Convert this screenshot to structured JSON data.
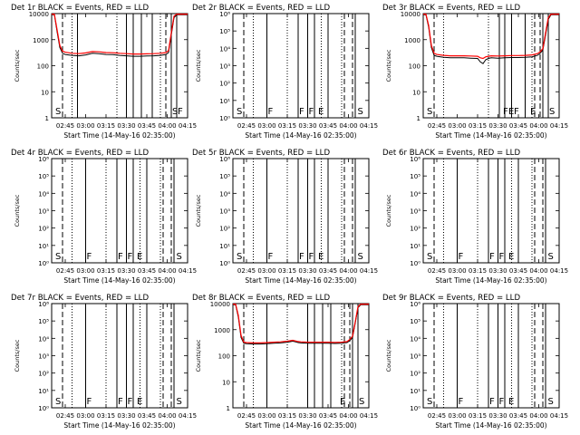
{
  "figure": {
    "xlabel": "Start Time (14-May-16 02:35:00)",
    "ylabel": "Counts/sec",
    "x_tick_labels": [
      "02:45",
      "03:00",
      "03:15",
      "03:30",
      "03:45",
      "04:00",
      "04:15"
    ],
    "colors": {
      "events": "#000000",
      "lld": "#ff0000"
    }
  },
  "chart_data": [
    {
      "type": "line",
      "title": "Det 1r BLACK = Events, RED = LLD",
      "xlabel": "Start Time (14-May-16 02:35:00)",
      "ylabel": "Counts/sec",
      "scale": "log",
      "ylim": [
        1,
        10000
      ],
      "ytick_labels": [
        "1",
        "10",
        "100",
        "1000",
        "10000"
      ],
      "x_ticks_minutes": [
        10,
        25,
        40,
        55,
        70,
        85,
        100
      ],
      "markers": [
        {
          "t": 2,
          "label": "S"
        },
        {
          "t": 88,
          "label": "S"
        },
        {
          "t": 92,
          "label": "F"
        }
      ],
      "solid_lines": [
        19,
        55,
        60,
        66,
        74,
        88,
        92
      ],
      "dashed_lines": [
        8,
        84
      ],
      "dotted_lines": [
        15,
        48,
        80
      ],
      "series": [
        {
          "name": "Events",
          "color": "#000000",
          "x": [
            0,
            2,
            4,
            6,
            8,
            10,
            15,
            20,
            25,
            30,
            35,
            40,
            45,
            50,
            55,
            60,
            65,
            70,
            75,
            80,
            84,
            86,
            88,
            90,
            92,
            94,
            96,
            98,
            100
          ],
          "y": [
            9000,
            9000,
            2000,
            500,
            300,
            270,
            250,
            240,
            260,
            300,
            290,
            270,
            265,
            250,
            240,
            230,
            230,
            235,
            240,
            250,
            270,
            320,
            1500,
            7000,
            9000,
            9000,
            9000,
            9000,
            9000
          ]
        },
        {
          "name": "LLD",
          "color": "#ff0000",
          "x": [
            0,
            2,
            4,
            6,
            8,
            10,
            15,
            20,
            25,
            30,
            35,
            40,
            45,
            50,
            55,
            60,
            65,
            70,
            75,
            80,
            84,
            86,
            88,
            90,
            92,
            94,
            96,
            98,
            100
          ],
          "y": [
            9500,
            9500,
            2400,
            600,
            360,
            330,
            300,
            290,
            310,
            350,
            340,
            320,
            315,
            300,
            290,
            280,
            280,
            285,
            290,
            300,
            320,
            380,
            1800,
            8000,
            9500,
            9500,
            9500,
            9500,
            9500
          ]
        }
      ]
    },
    {
      "type": "line",
      "title": "Det 2r BLACK = Events, RED = LLD",
      "xlabel": "Start Time (14-May-16 02:35:00)",
      "ylabel": "Counts/sec",
      "scale": "log",
      "ylim": [
        1,
        1000000
      ],
      "ytick_labels": [
        "10⁰",
        "10¹",
        "10²",
        "10³",
        "10⁴",
        "10⁵",
        "10⁶"
      ],
      "x_ticks_minutes": [
        10,
        25,
        40,
        55,
        70,
        85,
        100
      ],
      "markers": [
        {
          "t": 2,
          "label": "S"
        },
        {
          "t": 25,
          "label": "F"
        },
        {
          "t": 48,
          "label": "F"
        },
        {
          "t": 55,
          "label": "F"
        },
        {
          "t": 62,
          "label": "E"
        },
        {
          "t": 91,
          "label": "S"
        }
      ],
      "solid_lines": [
        25,
        48,
        55,
        60,
        70,
        90
      ],
      "dashed_lines": [
        8,
        82,
        88
      ],
      "dotted_lines": [
        15,
        40,
        65,
        80
      ],
      "series": []
    },
    {
      "type": "line",
      "title": "Det 3r BLACK = Events, RED = LLD",
      "xlabel": "Start Time (14-May-16 02:35:00)",
      "ylabel": "Counts/sec",
      "scale": "log",
      "ylim": [
        1,
        10000
      ],
      "ytick_labels": [
        "1",
        "10",
        "100",
        "1000",
        "10000"
      ],
      "x_ticks_minutes": [
        10,
        25,
        40,
        55,
        70,
        85,
        100
      ],
      "markers": [
        {
          "t": 2,
          "label": "S"
        },
        {
          "t": 58,
          "label": "F"
        },
        {
          "t": 62,
          "label": "E"
        },
        {
          "t": 66,
          "label": "F"
        },
        {
          "t": 78,
          "label": "E"
        },
        {
          "t": 92,
          "label": "S"
        }
      ],
      "solid_lines": [
        56,
        60,
        65,
        75,
        88,
        92
      ],
      "dashed_lines": [
        8,
        82,
        86
      ],
      "dotted_lines": [
        15,
        48,
        80
      ],
      "series": [
        {
          "name": "Events",
          "color": "#000000",
          "x": [
            0,
            2,
            4,
            6,
            8,
            10,
            15,
            20,
            25,
            30,
            35,
            40,
            42,
            44,
            46,
            48,
            50,
            55,
            60,
            65,
            70,
            75,
            80,
            84,
            86,
            88,
            90,
            92,
            94,
            96,
            98,
            100
          ],
          "y": [
            9000,
            9000,
            3000,
            500,
            250,
            230,
            210,
            200,
            200,
            200,
            195,
            190,
            140,
            120,
            170,
            190,
            200,
            195,
            200,
            205,
            205,
            210,
            220,
            250,
            300,
            400,
            1500,
            6000,
            9000,
            9000,
            9000,
            9000
          ]
        },
        {
          "name": "LLD",
          "color": "#ff0000",
          "x": [
            0,
            2,
            4,
            6,
            8,
            10,
            15,
            20,
            25,
            30,
            35,
            40,
            42,
            44,
            46,
            48,
            50,
            55,
            60,
            65,
            70,
            75,
            80,
            84,
            86,
            88,
            90,
            92,
            94,
            96,
            98,
            100
          ],
          "y": [
            9500,
            9500,
            3500,
            600,
            300,
            270,
            250,
            240,
            240,
            240,
            235,
            230,
            200,
            190,
            220,
            230,
            240,
            235,
            240,
            245,
            245,
            250,
            260,
            290,
            340,
            450,
            1800,
            7000,
            9500,
            9500,
            9500,
            9500
          ]
        }
      ]
    },
    {
      "type": "line",
      "title": "Det 4r BLACK = Events, RED = LLD",
      "xlabel": "Start Time (14-May-16 02:35:00)",
      "ylabel": "Counts/sec",
      "scale": "log",
      "ylim": [
        1,
        1000000
      ],
      "ytick_labels": [
        "10⁰",
        "10¹",
        "10²",
        "10³",
        "10⁴",
        "10⁵",
        "10⁶"
      ],
      "x_ticks_minutes": [
        10,
        25,
        40,
        55,
        70,
        85,
        100
      ],
      "markers": [
        {
          "t": 2,
          "label": "S"
        },
        {
          "t": 25,
          "label": "F"
        },
        {
          "t": 48,
          "label": "F"
        },
        {
          "t": 55,
          "label": "F"
        },
        {
          "t": 62,
          "label": "E"
        },
        {
          "t": 91,
          "label": "S"
        }
      ],
      "solid_lines": [
        25,
        48,
        55,
        60,
        70,
        90
      ],
      "dashed_lines": [
        8,
        82,
        88
      ],
      "dotted_lines": [
        15,
        40,
        65,
        80
      ],
      "series": []
    },
    {
      "type": "line",
      "title": "Det 5r BLACK = Events, RED = LLD",
      "xlabel": "Start Time (14-May-16 02:35:00)",
      "ylabel": "Counts/sec",
      "scale": "log",
      "ylim": [
        1,
        1000000
      ],
      "ytick_labels": [
        "10⁰",
        "10¹",
        "10²",
        "10³",
        "10⁴",
        "10⁵",
        "10⁶"
      ],
      "x_ticks_minutes": [
        10,
        25,
        40,
        55,
        70,
        85,
        100
      ],
      "markers": [
        {
          "t": 2,
          "label": "S"
        },
        {
          "t": 25,
          "label": "F"
        },
        {
          "t": 48,
          "label": "F"
        },
        {
          "t": 55,
          "label": "F"
        },
        {
          "t": 62,
          "label": "E"
        },
        {
          "t": 91,
          "label": "S"
        }
      ],
      "solid_lines": [
        25,
        48,
        55,
        60,
        70,
        90
      ],
      "dashed_lines": [
        8,
        82,
        88
      ],
      "dotted_lines": [
        15,
        40,
        65,
        80
      ],
      "series": []
    },
    {
      "type": "line",
      "title": "Det 6r BLACK = Events, RED = LLD",
      "xlabel": "Start Time (14-May-16 02:35:00)",
      "ylabel": "Counts/sec",
      "scale": "log",
      "ylim": [
        1,
        1000000
      ],
      "ytick_labels": [
        "10⁰",
        "10¹",
        "10²",
        "10³",
        "10⁴",
        "10⁵",
        "10⁶"
      ],
      "x_ticks_minutes": [
        10,
        25,
        40,
        55,
        70,
        85,
        100
      ],
      "markers": [
        {
          "t": 2,
          "label": "S"
        },
        {
          "t": 25,
          "label": "F"
        },
        {
          "t": 48,
          "label": "F"
        },
        {
          "t": 55,
          "label": "F"
        },
        {
          "t": 62,
          "label": "E"
        },
        {
          "t": 91,
          "label": "S"
        }
      ],
      "solid_lines": [
        25,
        48,
        55,
        60,
        70,
        90
      ],
      "dashed_lines": [
        8,
        82,
        88
      ],
      "dotted_lines": [
        15,
        40,
        65,
        80
      ],
      "series": []
    },
    {
      "type": "line",
      "title": "Det 7r BLACK = Events, RED = LLD",
      "xlabel": "Start Time (14-May-16 02:35:00)",
      "ylabel": "Counts/sec",
      "scale": "log",
      "ylim": [
        1,
        1000000
      ],
      "ytick_labels": [
        "10⁰",
        "10¹",
        "10²",
        "10³",
        "10⁴",
        "10⁵",
        "10⁶"
      ],
      "x_ticks_minutes": [
        10,
        25,
        40,
        55,
        70,
        85,
        100
      ],
      "markers": [
        {
          "t": 2,
          "label": "S"
        },
        {
          "t": 25,
          "label": "F"
        },
        {
          "t": 48,
          "label": "F"
        },
        {
          "t": 55,
          "label": "F"
        },
        {
          "t": 62,
          "label": "E"
        },
        {
          "t": 91,
          "label": "S"
        }
      ],
      "solid_lines": [
        25,
        48,
        55,
        60,
        70,
        90
      ],
      "dashed_lines": [
        8,
        82,
        88
      ],
      "dotted_lines": [
        15,
        40,
        65,
        80
      ],
      "series": []
    },
    {
      "type": "line",
      "title": "Det 8r BLACK = Events, RED = LLD",
      "xlabel": "Start Time (14-May-16 02:35:00)",
      "ylabel": "Counts/sec",
      "scale": "log",
      "ylim": [
        1,
        10000
      ],
      "ytick_labels": [
        "1",
        "10",
        "100",
        "1000",
        "10000"
      ],
      "x_ticks_minutes": [
        10,
        25,
        40,
        55,
        70,
        85,
        100
      ],
      "markers": [
        {
          "t": 78,
          "label": "E"
        },
        {
          "t": 92,
          "label": "S"
        }
      ],
      "solid_lines": [
        25,
        55,
        60,
        66,
        72,
        88,
        92
      ],
      "dashed_lines": [
        8,
        82,
        86
      ],
      "dotted_lines": [
        15,
        40,
        80
      ],
      "series": [
        {
          "name": "Events",
          "color": "#000000",
          "x": [
            0,
            2,
            4,
            6,
            8,
            10,
            15,
            20,
            25,
            30,
            35,
            40,
            44,
            46,
            48,
            50,
            55,
            60,
            65,
            70,
            75,
            80,
            84,
            86,
            88,
            90,
            92,
            94,
            96,
            98,
            100
          ],
          "y": [
            9000,
            9000,
            3000,
            500,
            300,
            290,
            280,
            280,
            290,
            300,
            310,
            330,
            360,
            340,
            320,
            310,
            300,
            300,
            300,
            300,
            295,
            300,
            320,
            380,
            500,
            1800,
            7000,
            9000,
            9000,
            9000,
            9000
          ]
        },
        {
          "name": "LLD",
          "color": "#ff0000",
          "x": [
            0,
            2,
            4,
            6,
            8,
            10,
            15,
            20,
            25,
            30,
            35,
            40,
            44,
            46,
            48,
            50,
            55,
            60,
            65,
            70,
            75,
            80,
            84,
            86,
            88,
            90,
            92,
            94,
            96,
            98,
            100
          ],
          "y": [
            9500,
            9500,
            3500,
            600,
            330,
            320,
            310,
            310,
            320,
            330,
            340,
            360,
            390,
            370,
            350,
            340,
            330,
            330,
            330,
            330,
            325,
            330,
            350,
            420,
            560,
            2000,
            7500,
            9500,
            9500,
            9500,
            9500
          ]
        }
      ]
    },
    {
      "type": "line",
      "title": "Det 9r BLACK = Events, RED = LLD",
      "xlabel": "Start Time (14-May-16 02:35:00)",
      "ylabel": "Counts/sec",
      "scale": "log",
      "ylim": [
        1,
        1000000
      ],
      "ytick_labels": [
        "10⁰",
        "10¹",
        "10²",
        "10³",
        "10⁴",
        "10⁵",
        "10⁶"
      ],
      "x_ticks_minutes": [
        10,
        25,
        40,
        55,
        70,
        85,
        100
      ],
      "markers": [
        {
          "t": 2,
          "label": "S"
        },
        {
          "t": 25,
          "label": "F"
        },
        {
          "t": 48,
          "label": "F"
        },
        {
          "t": 55,
          "label": "F"
        },
        {
          "t": 62,
          "label": "E"
        },
        {
          "t": 91,
          "label": "S"
        }
      ],
      "solid_lines": [
        25,
        48,
        55,
        60,
        70,
        90
      ],
      "dashed_lines": [
        8,
        82,
        88
      ],
      "dotted_lines": [
        15,
        40,
        65,
        80
      ],
      "series": []
    }
  ]
}
